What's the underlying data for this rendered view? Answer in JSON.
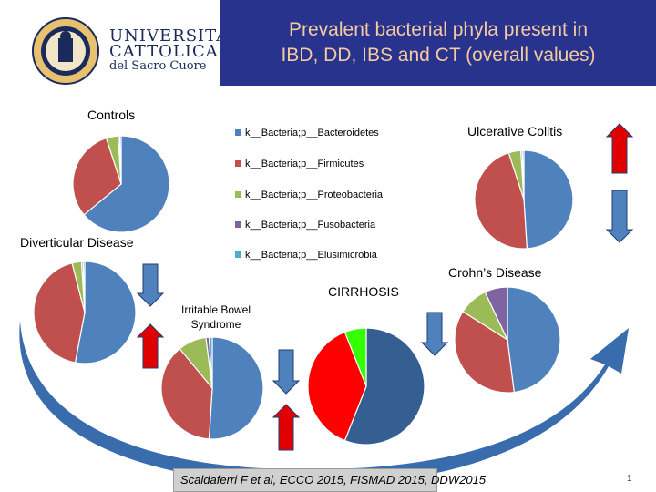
{
  "slide": {
    "title_line1": "Prevalent bacterial phyla present in",
    "title_line2": "IBD, DD, IBS and CT (overall values)",
    "logo_line1": "UNIVERSITÀ",
    "logo_line2": "CATTOLICA",
    "logo_line3": "del Sacro Cuore",
    "citation": "Scaldaferri F et al, ECCO 2015, FISMAD 2015, DDW2015",
    "slide_number": "1"
  },
  "colors": {
    "title_bg": "#27338c",
    "title_text": "#f6c9a0",
    "arrow_blue": "#4f81bd",
    "arrow_red": "#e00000"
  },
  "chart_data": [
    {
      "type": "pie",
      "title": "Controls",
      "series": [
        {
          "name": "k__Bacteria;p__Bacteroidetes",
          "value": 64,
          "color": "#4f81bd"
        },
        {
          "name": "k__Bacteria;p__Firmicutes",
          "value": 31,
          "color": "#c0504d"
        },
        {
          "name": "k__Bacteria;p__Proteobacteria",
          "value": 4,
          "color": "#9bbb59"
        },
        {
          "name": "k__Bacteria;p__Fusobacteria",
          "value": 0.5,
          "color": "#8064a2"
        },
        {
          "name": "k__Bacteria;p__Elusimicrobia",
          "value": 0.5,
          "color": "#4bacc6"
        }
      ]
    },
    {
      "type": "pie",
      "title": "Ulcerative Colitis",
      "series": [
        {
          "name": "k__Bacteria;p__Bacteroidetes",
          "value": 49,
          "color": "#4f81bd"
        },
        {
          "name": "k__Bacteria;p__Firmicutes",
          "value": 46,
          "color": "#c0504d"
        },
        {
          "name": "k__Bacteria;p__Proteobacteria",
          "value": 4,
          "color": "#9bbb59"
        },
        {
          "name": "k__Bacteria;p__Fusobacteria",
          "value": 0.5,
          "color": "#8064a2"
        },
        {
          "name": "k__Bacteria;p__Elusimicrobia",
          "value": 0.5,
          "color": "#4bacc6"
        }
      ]
    },
    {
      "type": "pie",
      "title": "Diverticular Disease",
      "series": [
        {
          "name": "k__Bacteria;p__Bacteroidetes",
          "value": 53,
          "color": "#4f81bd"
        },
        {
          "name": "k__Bacteria;p__Firmicutes",
          "value": 43,
          "color": "#c0504d"
        },
        {
          "name": "k__Bacteria;p__Proteobacteria",
          "value": 3,
          "color": "#9bbb59"
        },
        {
          "name": "k__Bacteria;p__Fusobacteria",
          "value": 0.5,
          "color": "#8064a2"
        },
        {
          "name": "k__Bacteria;p__Elusimicrobia",
          "value": 0.5,
          "color": "#4bacc6"
        }
      ]
    },
    {
      "type": "pie",
      "title": "Irritable Bowel Syndrome",
      "title_lines": [
        "Irritable Bowel",
        "Syndrome"
      ],
      "series": [
        {
          "name": "k__Bacteria;p__Bacteroidetes",
          "value": 51,
          "color": "#4f81bd"
        },
        {
          "name": "k__Bacteria;p__Firmicutes",
          "value": 38,
          "color": "#c0504d"
        },
        {
          "name": "k__Bacteria;p__Proteobacteria",
          "value": 9,
          "color": "#9bbb59"
        },
        {
          "name": "k__Bacteria;p__Fusobacteria",
          "value": 1,
          "color": "#8064a2"
        },
        {
          "name": "k__Bacteria;p__Elusimicrobia",
          "value": 1,
          "color": "#4bacc6"
        }
      ]
    },
    {
      "type": "pie",
      "title": "CIRRHOSIS",
      "series": [
        {
          "name": "k__Bacteria;p__Bacteroidetes",
          "value": 56,
          "color": "#365f91"
        },
        {
          "name": "k__Bacteria;p__Firmicutes",
          "value": 38,
          "color": "#ff0000"
        },
        {
          "name": "k__Bacteria;p__Proteobacteria",
          "value": 6,
          "color": "#33ff00"
        }
      ]
    },
    {
      "type": "pie",
      "title": "Crohn’s Disease",
      "series": [
        {
          "name": "k__Bacteria;p__Bacteroidetes",
          "value": 48,
          "color": "#4f81bd"
        },
        {
          "name": "k__Bacteria;p__Firmicutes",
          "value": 36,
          "color": "#c0504d"
        },
        {
          "name": "k__Bacteria;p__Proteobacteria",
          "value": 9,
          "color": "#9bbb59"
        },
        {
          "name": "k__Bacteria;p__Fusobacteria",
          "value": 7,
          "color": "#8064a2"
        }
      ]
    }
  ],
  "legend": [
    {
      "label": "k__Bacteria;p__Bacteroidetes",
      "color": "#4f81bd"
    },
    {
      "label": "k__Bacteria;p__Firmicutes",
      "color": "#c0504d"
    },
    {
      "label": "k__Bacteria;p__Proteobacteria",
      "color": "#9bbb59"
    },
    {
      "label": "k__Bacteria;p__Fusobacteria",
      "color": "#8064a2"
    },
    {
      "label": "k__Bacteria;p__Elusimicrobia",
      "color": "#4bacc6"
    }
  ]
}
